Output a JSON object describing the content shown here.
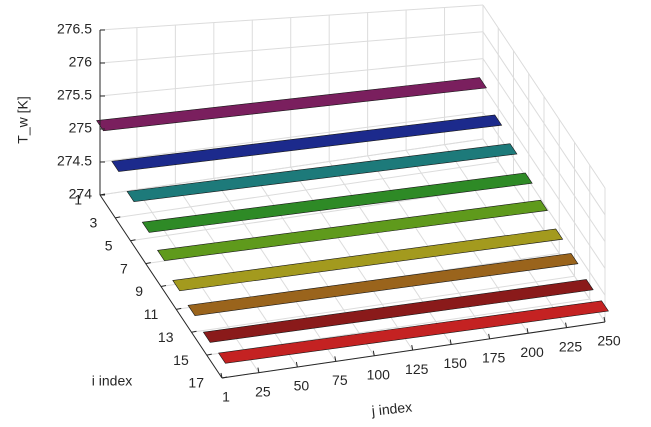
{
  "chart_data": {
    "type": "surface3d",
    "xlabel": "j index",
    "ylabel": "i index",
    "zlabel": "T_w [K]",
    "xlim": [
      1,
      250
    ],
    "xticks": [
      1,
      25,
      50,
      75,
      100,
      125,
      150,
      175,
      200,
      225,
      250
    ],
    "ylim": [
      1,
      17
    ],
    "yticks": [
      1,
      3,
      5,
      7,
      9,
      11,
      13,
      15,
      17
    ],
    "zlim": [
      274,
      276.5
    ],
    "zticks": [
      274,
      274.5,
      275,
      275.5,
      276,
      276.5
    ],
    "grid": true,
    "series": [
      {
        "i": 1,
        "color": "#7a1f5e",
        "values": [
          275.05
        ]
      },
      {
        "i": 3,
        "color": "#1c2a8c",
        "values": [
          274.78
        ]
      },
      {
        "i": 5,
        "color": "#1d7a7a",
        "values": [
          274.67
        ]
      },
      {
        "i": 7,
        "color": "#2e8a26",
        "values": [
          274.55
        ]
      },
      {
        "i": 9,
        "color": "#5f9a1c",
        "values": [
          274.47
        ]
      },
      {
        "i": 11,
        "color": "#a39a1e",
        "values": [
          274.36
        ]
      },
      {
        "i": 13,
        "color": "#9a641c",
        "values": [
          274.33
        ]
      },
      {
        "i": 15,
        "color": "#8a1a1a",
        "values": [
          274.27
        ]
      },
      {
        "i": 17,
        "color": "#c42222",
        "values": [
          274.3
        ]
      }
    ]
  }
}
